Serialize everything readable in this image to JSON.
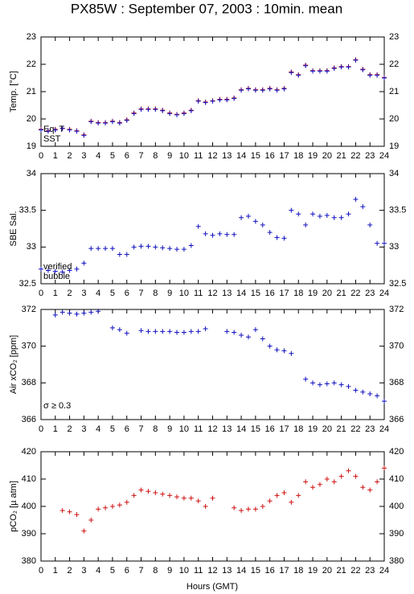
{
  "chart_data": [
    {
      "type": "scatter",
      "title": "PX85W : September 07, 2003 : 10min. mean",
      "y_label": "Temp. [°C]",
      "x": [
        0,
        0.5,
        1,
        1.5,
        2,
        2.5,
        3,
        3.5,
        4,
        4.5,
        5,
        5.5,
        6,
        6.5,
        7,
        7.5,
        8,
        8.5,
        9,
        9.5,
        10,
        10.5,
        11,
        11.5,
        12,
        12.5,
        13,
        13.5,
        14,
        14.5,
        15,
        15.5,
        16,
        16.5,
        17,
        17.5,
        18,
        18.5,
        19,
        19.5,
        20,
        20.5,
        21,
        21.5,
        22,
        22.5,
        23,
        23.5,
        24
      ],
      "series": [
        {
          "name": "Eq. T",
          "color": "#d01010",
          "values": [
            19.62,
            19.57,
            19.62,
            19.66,
            19.62,
            19.57,
            19.42,
            19.92,
            19.87,
            19.87,
            19.92,
            19.87,
            19.97,
            20.22,
            20.37,
            20.37,
            20.37,
            20.32,
            20.22,
            20.17,
            20.22,
            20.32,
            20.67,
            20.62,
            20.67,
            20.72,
            20.72,
            20.77,
            21.07,
            21.12,
            21.07,
            21.07,
            21.12,
            21.07,
            21.12,
            21.72,
            21.62,
            21.97,
            21.77,
            21.77,
            21.77,
            21.87,
            21.92,
            21.92,
            22.17,
            21.82,
            21.62,
            21.62,
            21.52
          ]
        },
        {
          "name": "SST",
          "color": "#1010c0",
          "values": [
            19.6,
            19.55,
            19.6,
            19.65,
            19.6,
            19.55,
            19.4,
            19.9,
            19.85,
            19.85,
            19.9,
            19.85,
            19.95,
            20.2,
            20.35,
            20.35,
            20.35,
            20.3,
            20.2,
            20.15,
            20.2,
            20.3,
            20.65,
            20.6,
            20.65,
            20.7,
            20.7,
            20.75,
            21.05,
            21.1,
            21.05,
            21.05,
            21.1,
            21.05,
            21.1,
            21.7,
            21.6,
            21.95,
            21.75,
            21.75,
            21.75,
            21.85,
            21.9,
            21.9,
            22.15,
            21.8,
            21.6,
            21.6,
            21.5
          ]
        }
      ],
      "xlim": [
        0,
        24
      ],
      "xticks": [
        0,
        1,
        2,
        3,
        4,
        5,
        6,
        7,
        8,
        9,
        10,
        11,
        12,
        13,
        14,
        15,
        16,
        17,
        18,
        19,
        20,
        21,
        22,
        23,
        24
      ],
      "ylim": [
        19,
        23
      ],
      "yticks": [
        19,
        20,
        21,
        22,
        23
      ]
    },
    {
      "type": "scatter",
      "y_label": "SBE Sal.",
      "x": [
        0,
        0.5,
        1,
        1.5,
        2,
        2.5,
        3,
        3.5,
        4,
        4.5,
        5,
        5.5,
        6,
        6.5,
        7,
        7.5,
        8,
        8.5,
        9,
        9.5,
        10,
        10.5,
        11,
        11.5,
        12,
        12.5,
        13,
        13.5,
        14,
        14.5,
        15,
        15.5,
        16,
        16.5,
        17,
        17.5,
        18,
        18.5,
        19,
        19.5,
        20,
        20.5,
        21,
        21.5,
        22,
        22.5,
        23,
        23.5,
        24
      ],
      "series": [
        {
          "name": "verified",
          "color": "#1010c0",
          "values": [
            32.7,
            32.68,
            32.67,
            32.66,
            32.68,
            32.7,
            32.78,
            32.98,
            32.98,
            32.98,
            32.98,
            32.9,
            32.9,
            33.0,
            33.01,
            33.01,
            33.0,
            32.99,
            32.98,
            32.97,
            32.97,
            33.02,
            33.28,
            33.18,
            33.16,
            33.18,
            33.17,
            33.17,
            33.4,
            33.42,
            33.35,
            33.3,
            33.2,
            33.13,
            33.12,
            33.5,
            33.45,
            33.3,
            33.45,
            33.42,
            33.43,
            33.4,
            33.4,
            33.45,
            33.65,
            33.55,
            33.3,
            33.05,
            33.05
          ]
        },
        {
          "name": "bubble",
          "color": "#c010c0",
          "values": [
            null,
            null,
            null,
            null,
            null,
            null,
            null,
            null,
            null,
            null,
            null,
            null,
            null,
            null,
            null,
            null,
            null,
            null,
            null,
            null,
            null,
            null,
            null,
            null,
            null,
            null,
            null,
            null,
            null,
            null,
            null,
            null,
            null,
            null,
            null,
            null,
            null,
            null,
            null,
            null,
            null,
            null,
            null,
            null,
            null,
            null,
            null,
            null,
            null
          ]
        }
      ],
      "xlim": [
        0,
        24
      ],
      "xticks": [
        0,
        1,
        2,
        3,
        4,
        5,
        6,
        7,
        8,
        9,
        10,
        11,
        12,
        13,
        14,
        15,
        16,
        17,
        18,
        19,
        20,
        21,
        22,
        23,
        24
      ],
      "ylim": [
        32.5,
        34
      ],
      "yticks": [
        32.5,
        33,
        33.5,
        34
      ]
    },
    {
      "type": "scatter",
      "y_label": "Air xCO₂ [ppm]",
      "annotation": "σ ≥ 0.3",
      "annotation_color": "#c010c0",
      "x": [
        0,
        0.5,
        1,
        1.5,
        2,
        2.5,
        3,
        3.5,
        4,
        4.5,
        5,
        5.5,
        6,
        6.5,
        7,
        7.5,
        8,
        8.5,
        9,
        9.5,
        10,
        10.5,
        11,
        11.5,
        12,
        12.5,
        13,
        13.5,
        14,
        14.5,
        15,
        15.5,
        16,
        16.5,
        17,
        17.5,
        18,
        18.5,
        19,
        19.5,
        20,
        20.5,
        21,
        21.5,
        22,
        22.5,
        23,
        23.5,
        24
      ],
      "series": [
        {
          "color": "#1010c0",
          "values": [
            null,
            null,
            371.7,
            371.85,
            371.8,
            371.75,
            371.8,
            371.85,
            371.9,
            null,
            371.0,
            370.9,
            370.7,
            null,
            370.85,
            370.8,
            370.8,
            370.8,
            370.8,
            370.75,
            370.75,
            370.8,
            370.8,
            370.95,
            null,
            null,
            370.8,
            370.75,
            370.6,
            370.5,
            370.9,
            370.4,
            370.0,
            369.8,
            369.75,
            369.6,
            null,
            368.2,
            368.0,
            367.9,
            367.95,
            368.0,
            367.9,
            367.8,
            367.6,
            367.5,
            367.4,
            367.3,
            367.0
          ]
        }
      ],
      "xlim": [
        0,
        24
      ],
      "xticks": [
        0,
        1,
        2,
        3,
        4,
        5,
        6,
        7,
        8,
        9,
        10,
        11,
        12,
        13,
        14,
        15,
        16,
        17,
        18,
        19,
        20,
        21,
        22,
        23,
        24
      ],
      "ylim": [
        366,
        372
      ],
      "yticks": [
        366,
        368,
        370,
        372
      ]
    },
    {
      "type": "scatter",
      "y_label": "pCO₂ [µ atm]",
      "x_label": "Hours (GMT)",
      "x": [
        0,
        0.5,
        1,
        1.5,
        2,
        2.5,
        3,
        3.5,
        4,
        4.5,
        5,
        5.5,
        6,
        6.5,
        7,
        7.5,
        8,
        8.5,
        9,
        9.5,
        10,
        10.5,
        11,
        11.5,
        12,
        12.5,
        13,
        13.5,
        14,
        14.5,
        15,
        15.5,
        16,
        16.5,
        17,
        17.5,
        18,
        18.5,
        19,
        19.5,
        20,
        20.5,
        21,
        21.5,
        22,
        22.5,
        23,
        23.5,
        24
      ],
      "series": [
        {
          "color": "#d01010",
          "values": [
            null,
            null,
            null,
            398.5,
            398,
            397,
            391,
            395,
            399,
            399.5,
            400,
            400.5,
            401.5,
            404,
            406,
            405.5,
            405,
            404.5,
            404,
            403.5,
            403,
            403,
            402,
            400,
            403,
            null,
            null,
            399.5,
            398.5,
            399,
            399,
            400,
            402,
            404,
            405,
            401.5,
            404,
            409,
            407,
            408,
            410,
            409,
            411,
            413,
            411,
            407,
            406,
            409,
            414
          ]
        }
      ],
      "xlim": [
        0,
        24
      ],
      "xticks": [
        0,
        1,
        2,
        3,
        4,
        5,
        6,
        7,
        8,
        9,
        10,
        11,
        12,
        13,
        14,
        15,
        16,
        17,
        18,
        19,
        20,
        21,
        22,
        23,
        24
      ],
      "ylim": [
        380,
        420
      ],
      "yticks": [
        380,
        390,
        400,
        410,
        420
      ]
    }
  ]
}
